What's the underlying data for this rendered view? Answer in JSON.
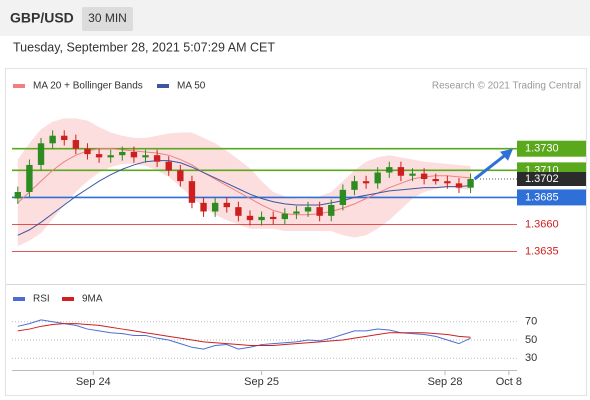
{
  "chart_data": {
    "type": "candlestick",
    "title": "GBP/USD",
    "interval": "30 MIN",
    "subtitle": "Tuesday, September 28, 2021 5:07:29 AM CET",
    "credit": "Research © 2021 Trading Central",
    "xlim": [
      0,
      43.5
    ],
    "xticks": [
      {
        "value": 7,
        "label": "Sep 24"
      },
      {
        "value": 21.5,
        "label": "Sep 25"
      },
      {
        "value": 37.3,
        "label": "Sep 28"
      },
      {
        "value": 42.8,
        "label": "Oct 8"
      }
    ],
    "ylim": [
      1.3605,
      1.3775
    ],
    "candles": {
      "up_color": "#2e8b22",
      "down_color": "#cc2020",
      "open": [
        1.3684,
        1.369,
        1.3715,
        1.3735,
        1.3742,
        1.3738,
        1.373,
        1.3725,
        1.3722,
        1.3724,
        1.3727,
        1.3722,
        1.3724,
        1.3718,
        1.371,
        1.37,
        1.368,
        1.3672,
        1.368,
        1.3676,
        1.3668,
        1.3664,
        1.3667,
        1.3665,
        1.367,
        1.3672,
        1.3676,
        1.3668,
        1.3678,
        1.3692,
        1.37,
        1.3698,
        1.3708,
        1.3713,
        1.3705,
        1.3707,
        1.3702,
        1.37,
        1.3698,
        1.3694
      ],
      "high": [
        1.3695,
        1.372,
        1.374,
        1.3747,
        1.3747,
        1.3743,
        1.3735,
        1.373,
        1.3729,
        1.3732,
        1.3732,
        1.3729,
        1.3729,
        1.3723,
        1.3715,
        1.3705,
        1.3685,
        1.3685,
        1.3685,
        1.3681,
        1.3673,
        1.3672,
        1.3672,
        1.3675,
        1.3677,
        1.3681,
        1.3681,
        1.3683,
        1.3697,
        1.3705,
        1.3705,
        1.3713,
        1.3718,
        1.3718,
        1.3712,
        1.3712,
        1.3707,
        1.3705,
        1.3703,
        1.3707
      ],
      "low": [
        1.3679,
        1.3685,
        1.371,
        1.373,
        1.3733,
        1.3725,
        1.372,
        1.3717,
        1.3717,
        1.3719,
        1.3717,
        1.3717,
        1.3713,
        1.3705,
        1.3695,
        1.3675,
        1.3667,
        1.3667,
        1.3671,
        1.3663,
        1.3659,
        1.3659,
        1.366,
        1.366,
        1.3665,
        1.3667,
        1.3663,
        1.3663,
        1.3673,
        1.3687,
        1.3693,
        1.3693,
        1.3703,
        1.37,
        1.37,
        1.3697,
        1.3697,
        1.3693,
        1.3689,
        1.3689
      ],
      "close": [
        1.369,
        1.3715,
        1.3735,
        1.3742,
        1.3738,
        1.373,
        1.3725,
        1.3722,
        1.3724,
        1.3727,
        1.3722,
        1.3724,
        1.3718,
        1.371,
        1.37,
        1.368,
        1.3672,
        1.368,
        1.3676,
        1.3668,
        1.3664,
        1.3667,
        1.3665,
        1.367,
        1.3672,
        1.3676,
        1.3668,
        1.3678,
        1.3692,
        1.37,
        1.3698,
        1.3708,
        1.3713,
        1.3705,
        1.3707,
        1.3702,
        1.37,
        1.3698,
        1.3694,
        1.3702
      ]
    },
    "series": [
      {
        "name": "MA 20 + Bollinger Bands",
        "color": "#f08080",
        "band_color": "#fbd3d3",
        "values": [
          1.368,
          1.369,
          1.37,
          1.371,
          1.3718,
          1.3724,
          1.3728,
          1.373,
          1.373,
          1.3729,
          1.3728,
          1.3727,
          1.3726,
          1.3724,
          1.372,
          1.3715,
          1.3708,
          1.3702,
          1.3696,
          1.369,
          1.3684,
          1.3678,
          1.3673,
          1.367,
          1.3669,
          1.3669,
          1.367,
          1.3672,
          1.3675,
          1.3679,
          1.3684,
          1.3689,
          1.3694,
          1.3698,
          1.3702,
          1.3704,
          1.3705,
          1.3705,
          1.3704,
          1.3703
        ],
        "upper": [
          1.372,
          1.3735,
          1.3748,
          1.3755,
          1.3758,
          1.3758,
          1.3756,
          1.375,
          1.3745,
          1.3742,
          1.374,
          1.374,
          1.3742,
          1.3744,
          1.3745,
          1.3745,
          1.374,
          1.3735,
          1.3728,
          1.372,
          1.3712,
          1.37,
          1.369,
          1.3686,
          1.3684,
          1.3684,
          1.3686,
          1.369,
          1.37,
          1.371,
          1.3718,
          1.3722,
          1.3724,
          1.3722,
          1.372,
          1.3718,
          1.3717,
          1.3716,
          1.3715,
          1.3714
        ],
        "lower": [
          1.364,
          1.3645,
          1.3652,
          1.3665,
          1.3678,
          1.369,
          1.37,
          1.3708,
          1.3713,
          1.3716,
          1.3716,
          1.3714,
          1.371,
          1.3704,
          1.3695,
          1.3685,
          1.3676,
          1.3669,
          1.3664,
          1.366,
          1.3656,
          1.3656,
          1.3656,
          1.3654,
          1.3654,
          1.3654,
          1.3654,
          1.3654,
          1.365,
          1.3648,
          1.365,
          1.3656,
          1.3664,
          1.3674,
          1.3684,
          1.369,
          1.3693,
          1.3694,
          1.3693,
          1.3692
        ]
      },
      {
        "name": "MA 50",
        "color": "#3b57a0",
        "values": [
          1.365,
          1.3655,
          1.3662,
          1.367,
          1.3678,
          1.3686,
          1.3693,
          1.37,
          1.3706,
          1.3711,
          1.3715,
          1.3718,
          1.3719,
          1.3719,
          1.3717,
          1.3713,
          1.3708,
          1.3703,
          1.3698,
          1.3693,
          1.3688,
          1.3684,
          1.3681,
          1.3679,
          1.3678,
          1.3678,
          1.3678,
          1.368,
          1.3682,
          1.3685,
          1.3687,
          1.3689,
          1.3691,
          1.3692,
          1.3693,
          1.3694,
          1.3694,
          1.3695,
          1.3695,
          1.3696
        ]
      }
    ],
    "levels": [
      {
        "value": 1.373,
        "label": "1.3730",
        "color": "#5aa81c",
        "style": "box"
      },
      {
        "value": 1.371,
        "label": "1.3710",
        "color": "#5aa81c",
        "style": "box"
      },
      {
        "value": 1.3702,
        "label": "1.3702",
        "color": "#2b2b2b",
        "style": "current"
      },
      {
        "value": 1.3685,
        "label": "1.3685",
        "color": "#2e6fd8",
        "style": "box"
      },
      {
        "value": 1.366,
        "label": "1.3660",
        "color": "#d02020",
        "style": "text"
      },
      {
        "value": 1.3635,
        "label": "1.3635",
        "color": "#d02020",
        "style": "text"
      }
    ],
    "arrow_target": 1.373,
    "arrow_color": "#2e6fd8",
    "rsi": {
      "ylim": [
        16,
        84
      ],
      "yticks": [
        70,
        50,
        30
      ],
      "series": [
        {
          "name": "RSI",
          "color": "#4a6fd0",
          "values": [
            65,
            68,
            72,
            70,
            68,
            66,
            62,
            60,
            58,
            57,
            55,
            55,
            52,
            50,
            46,
            42,
            40,
            44,
            45,
            40,
            42,
            45,
            46,
            47,
            48,
            50,
            49,
            52,
            56,
            60,
            60,
            62,
            61,
            58,
            57,
            56,
            54,
            50,
            46,
            52
          ]
        },
        {
          "name": "9MA",
          "color": "#d02020",
          "values": [
            60,
            62,
            65,
            67,
            68,
            68,
            67,
            66,
            64,
            62,
            60,
            58,
            56,
            54,
            52,
            50,
            48,
            47,
            46,
            45,
            44,
            44,
            44,
            45,
            46,
            47,
            48,
            49,
            50,
            52,
            54,
            56,
            58,
            58,
            58,
            58,
            57,
            56,
            54,
            53
          ]
        }
      ]
    }
  }
}
